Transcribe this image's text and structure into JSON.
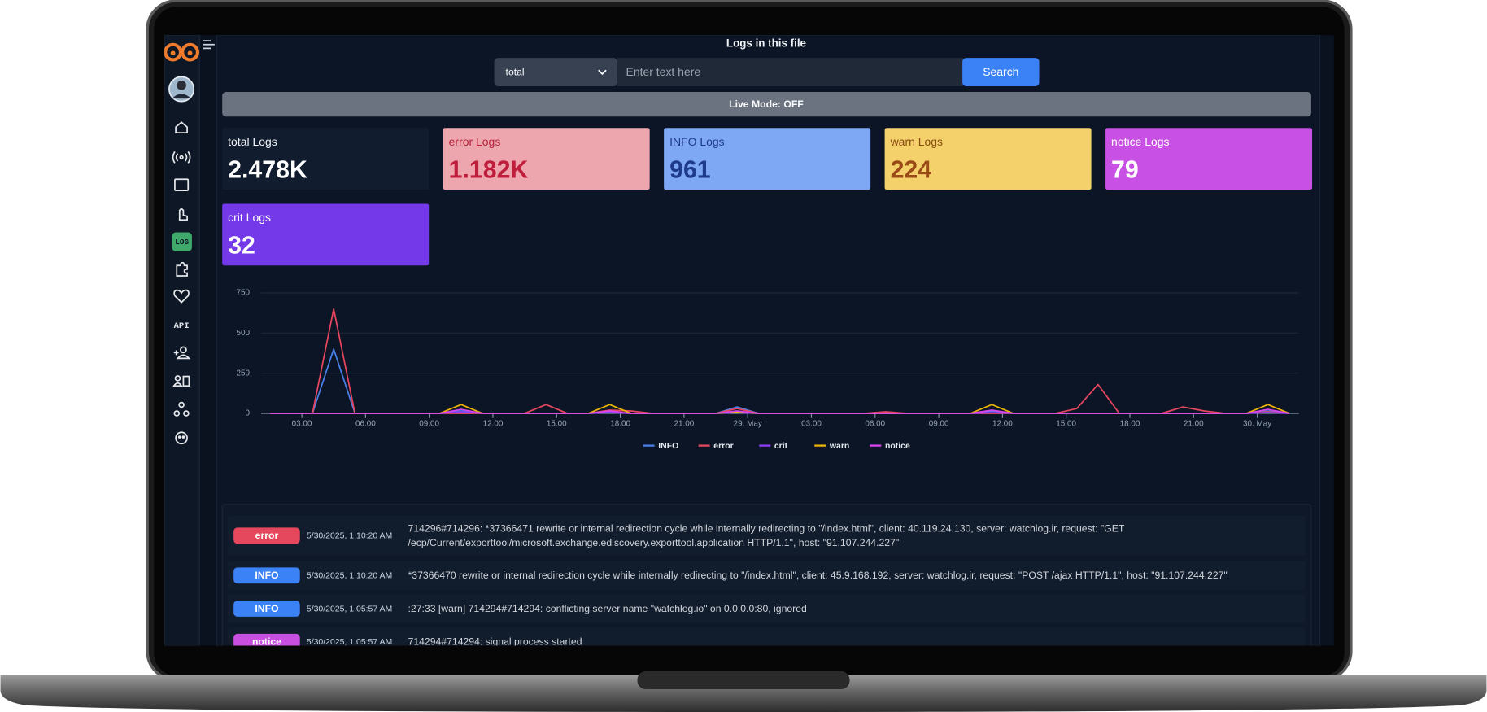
{
  "sidebar": {
    "log_label": "LOG",
    "api_label": "API"
  },
  "header": {
    "title": "Logs in this file"
  },
  "search": {
    "filter": "total",
    "placeholder": "Enter text here",
    "button": "Search"
  },
  "live_mode": "Live Mode: OFF",
  "stats": [
    {
      "label": "total Logs",
      "value": "2.478K"
    },
    {
      "label": "error Logs",
      "value": "1.182K"
    },
    {
      "label": "INFO Logs",
      "value": "961"
    },
    {
      "label": "warn Logs",
      "value": "224"
    },
    {
      "label": "notice Logs",
      "value": "79"
    },
    {
      "label": "crit Logs",
      "value": "32"
    }
  ],
  "chart_data": {
    "type": "line",
    "x": [
      1.5,
      2.5,
      3.5,
      4.5,
      5.5,
      6.5,
      7.5,
      8.5,
      9.5,
      10.5,
      11.5,
      12.5,
      13.5,
      14.5,
      15.5,
      16.5,
      17.5,
      18.5,
      19.5,
      20.5,
      21.5,
      22.5,
      23.5,
      24.5,
      25.5,
      26.5,
      27.5,
      28.5,
      29.5,
      30.5,
      31.5,
      32.5,
      33.5,
      34.5,
      35.5,
      36.5,
      37.5,
      38.5,
      39.5,
      40.5,
      41.5,
      42.5,
      43.5,
      44.5,
      45.5,
      46.5,
      47.5,
      48.5,
      49.5
    ],
    "series": [
      {
        "name": "INFO",
        "color": "#4a7fe8",
        "values": [
          0,
          0,
          0,
          400,
          0,
          0,
          0,
          0,
          0,
          15,
          0,
          0,
          0,
          0,
          0,
          0,
          10,
          0,
          0,
          0,
          0,
          0,
          40,
          0,
          0,
          0,
          0,
          0,
          0,
          0,
          0,
          0,
          0,
          0,
          15,
          0,
          0,
          0,
          0,
          0,
          0,
          0,
          0,
          0,
          0,
          0,
          0,
          15,
          0
        ]
      },
      {
        "name": "error",
        "color": "#e6465e",
        "values": [
          0,
          0,
          0,
          650,
          0,
          0,
          0,
          0,
          0,
          0,
          0,
          0,
          0,
          55,
          0,
          0,
          20,
          15,
          0,
          0,
          0,
          0,
          30,
          0,
          0,
          0,
          0,
          0,
          0,
          10,
          0,
          0,
          0,
          0,
          0,
          0,
          0,
          0,
          30,
          180,
          0,
          0,
          0,
          40,
          15,
          0,
          0,
          10,
          0
        ]
      },
      {
        "name": "crit",
        "color": "#8b3cf7",
        "values": [
          0,
          0,
          0,
          0,
          0,
          0,
          0,
          0,
          0,
          10,
          0,
          0,
          0,
          0,
          0,
          0,
          5,
          0,
          0,
          0,
          0,
          0,
          5,
          0,
          0,
          0,
          0,
          0,
          0,
          0,
          0,
          0,
          0,
          0,
          5,
          0,
          0,
          0,
          0,
          0,
          0,
          0,
          0,
          0,
          0,
          0,
          0,
          5,
          0
        ]
      },
      {
        "name": "warn",
        "color": "#eab308",
        "values": [
          0,
          0,
          0,
          0,
          0,
          0,
          0,
          0,
          0,
          55,
          0,
          0,
          0,
          0,
          0,
          0,
          55,
          0,
          0,
          0,
          0,
          0,
          10,
          0,
          0,
          0,
          0,
          0,
          0,
          0,
          0,
          0,
          0,
          0,
          55,
          0,
          0,
          0,
          0,
          0,
          0,
          0,
          0,
          0,
          0,
          0,
          0,
          55,
          0
        ]
      },
      {
        "name": "notice",
        "color": "#d946ef",
        "values": [
          0,
          0,
          0,
          0,
          0,
          0,
          0,
          0,
          0,
          25,
          0,
          0,
          0,
          0,
          0,
          0,
          15,
          0,
          0,
          0,
          0,
          0,
          15,
          0,
          0,
          0,
          0,
          0,
          0,
          0,
          0,
          0,
          0,
          0,
          20,
          0,
          0,
          0,
          0,
          0,
          0,
          0,
          0,
          0,
          0,
          0,
          0,
          25,
          0
        ]
      }
    ],
    "xlim": [
      1.08,
      49.96
    ],
    "xticks": [
      {
        "value": 3,
        "label": "03:00"
      },
      {
        "value": 6,
        "label": "06:00"
      },
      {
        "value": 9,
        "label": "09:00"
      },
      {
        "value": 12,
        "label": "12:00"
      },
      {
        "value": 15,
        "label": "15:00"
      },
      {
        "value": 18,
        "label": "18:00"
      },
      {
        "value": 21,
        "label": "21:00"
      },
      {
        "value": 24,
        "label": "29. May"
      },
      {
        "value": 27,
        "label": "03:00"
      },
      {
        "value": 30,
        "label": "06:00"
      },
      {
        "value": 33,
        "label": "09:00"
      },
      {
        "value": 36,
        "label": "12:00"
      },
      {
        "value": 39,
        "label": "15:00"
      },
      {
        "value": 42,
        "label": "18:00"
      },
      {
        "value": 45,
        "label": "21:00"
      },
      {
        "value": 48,
        "label": "30. May"
      }
    ],
    "ylim": [
      0,
      750
    ],
    "yticks": [
      0,
      250,
      500,
      750
    ],
    "grid": true,
    "legend": "bottom"
  },
  "logs": [
    {
      "level": "error",
      "time": "5/30/2025, 1:10:20 AM",
      "message": [
        "714296#714296: *37366471 rewrite or internal redirection cycle while internally redirecting to \"/index.html\", client: 40.119.24.130, server: watchlog.ir, request: \"GET",
        "/ecp/Current/exporttool/microsoft.exchange.ediscovery.exporttool.application HTTP/1.1\", host: \"91.107.244.227\""
      ]
    },
    {
      "level": "INFO",
      "time": "5/30/2025, 1:10:20 AM",
      "message": [
        "*37366470 rewrite or internal redirection cycle while internally redirecting to \"/index.html\", client: 45.9.168.192, server: watchlog.ir, request: \"POST /ajax HTTP/1.1\", host: \"91.107.244.227\""
      ]
    },
    {
      "level": "INFO",
      "time": "5/30/2025, 1:05:57 AM",
      "message": [
        ":27:33 [warn] 714294#714294: conflicting server name \"watchlog.io\" on 0.0.0.0:80, ignored"
      ]
    },
    {
      "level": "notice",
      "time": "5/30/2025, 1:05:57 AM",
      "message": [
        "714294#714294: signal process started"
      ]
    }
  ]
}
